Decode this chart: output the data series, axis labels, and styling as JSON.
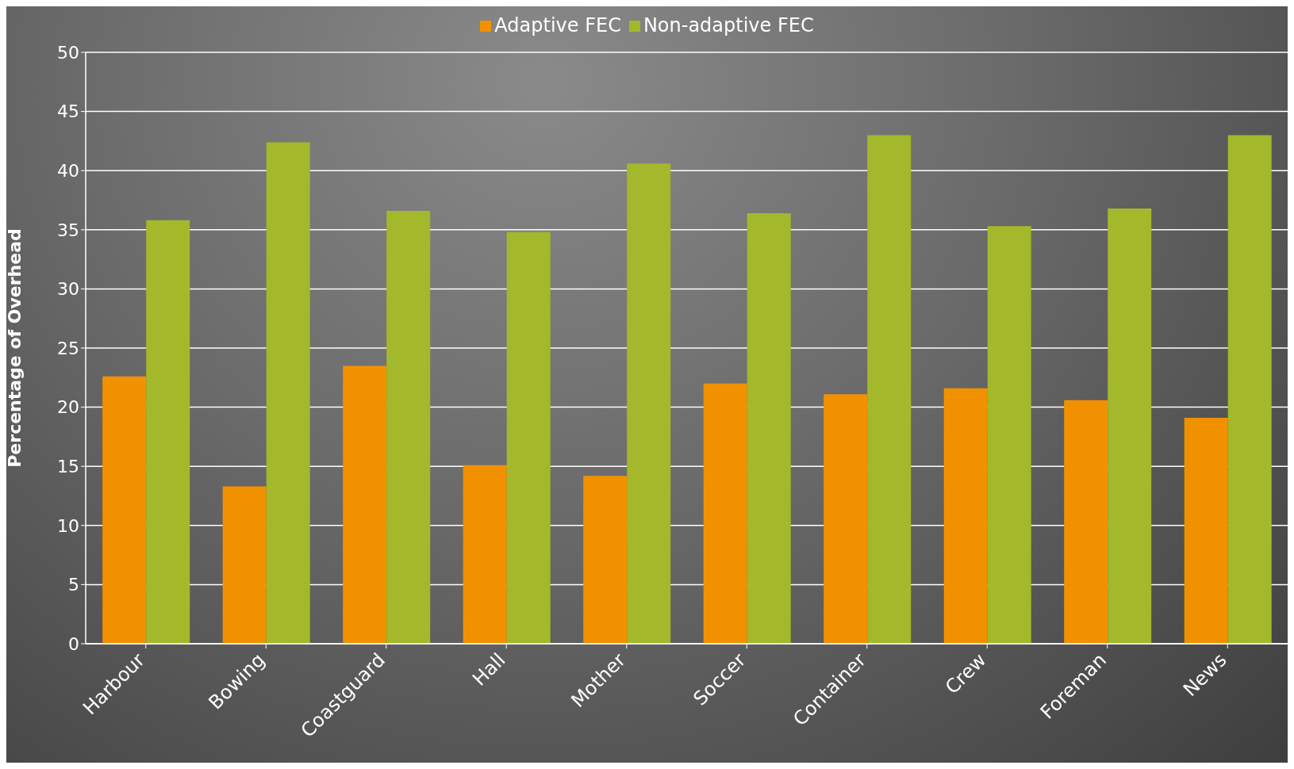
{
  "chart_data": {
    "type": "bar",
    "ylabel": "Percentage of Overhead",
    "categories": [
      "Harbour",
      "Bowing",
      "Coastguard",
      "Hall",
      "Mother",
      "Soccer",
      "Container",
      "Crew",
      "Foreman",
      "News"
    ],
    "series": [
      {
        "name": "Adaptive FEC",
        "color": "#f29100",
        "values": [
          22.6,
          13.3,
          23.5,
          15.1,
          14.2,
          22.0,
          21.1,
          21.6,
          20.6,
          19.1
        ]
      },
      {
        "name": "Non-adaptive FEC",
        "color": "#a3b82a",
        "values": [
          35.8,
          42.4,
          36.6,
          34.8,
          40.6,
          36.4,
          43.0,
          35.3,
          36.8,
          43.0
        ]
      }
    ],
    "ylim": [
      0,
      50
    ],
    "yticks": [
      0,
      5,
      10,
      15,
      20,
      25,
      30,
      35,
      40,
      45,
      50
    ],
    "grid": "y",
    "legend": "top"
  }
}
